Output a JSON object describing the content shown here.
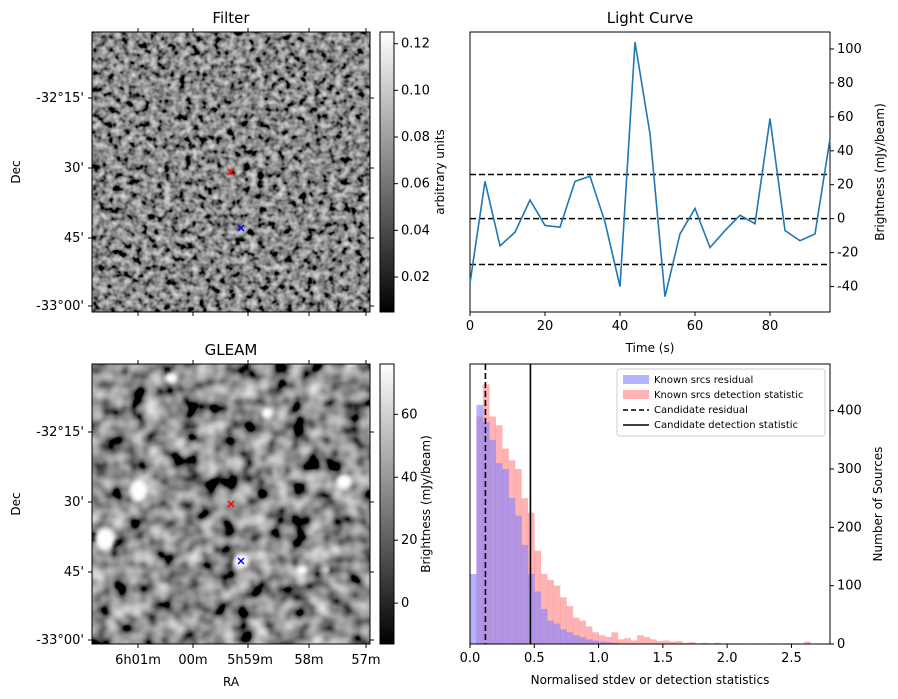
{
  "chart_data": [
    {
      "id": "filter",
      "type": "heatmap",
      "title": "Filter",
      "xlabel": "",
      "ylabel": "Dec",
      "dec_ticks": [
        "-32°15'",
        "30'",
        "45'",
        "-33°00'"
      ],
      "colorbar": {
        "label": "arbitrary units",
        "ticks": [
          "0.02",
          "0.04",
          "0.06",
          "0.08",
          "0.10",
          "0.12"
        ],
        "range": [
          0.005,
          0.125
        ]
      },
      "markers": [
        {
          "name": "red x",
          "color": "#ff0000",
          "ra": "5h59.5m",
          "dec": "-32°32'"
        },
        {
          "name": "blue x",
          "color": "#0000ff",
          "ra": "5h59.4m",
          "dec": "-32°42'"
        }
      ]
    },
    {
      "id": "lightcurve",
      "type": "line",
      "title": "Light Curve",
      "xlabel": "Time (s)",
      "ylabel": "Brightness (mJy/beam)",
      "xlim": [
        0,
        96
      ],
      "ylim": [
        -55,
        110
      ],
      "xticks": [
        "0",
        "20",
        "40",
        "60",
        "80"
      ],
      "yticks": [
        "-40",
        "-20",
        "0",
        "20",
        "40",
        "60",
        "80",
        "100"
      ],
      "series": [
        {
          "color": "#1f77b4",
          "x": [
            0,
            4,
            8,
            12,
            16,
            20,
            24,
            28,
            32,
            36,
            40,
            44,
            48,
            52,
            56,
            60,
            64,
            68,
            72,
            76,
            80,
            84,
            88,
            92,
            96
          ],
          "y": [
            -38,
            22,
            -16,
            -8,
            11,
            -4,
            -5,
            22,
            25,
            -2,
            -40,
            104,
            50,
            -46,
            -9,
            6,
            -17,
            -7,
            2,
            -3,
            59,
            -7,
            -13,
            -9,
            47
          ]
        }
      ],
      "hlines": [
        {
          "y": 26,
          "style": "dashed"
        },
        {
          "y": 0,
          "style": "dashed"
        },
        {
          "y": -27,
          "style": "dashed"
        }
      ]
    },
    {
      "id": "gleam",
      "type": "heatmap",
      "title": "GLEAM",
      "xlabel": "RA",
      "ylabel": "Dec",
      "ra_ticks": [
        "6h01m",
        "00m",
        "5h59m",
        "58m",
        "57m"
      ],
      "dec_ticks": [
        "-32°15'",
        "30'",
        "45'",
        "-33°00'"
      ],
      "colorbar": {
        "label": "Brightness (mJy/beam)",
        "ticks": [
          "0",
          "20",
          "40",
          "60"
        ],
        "range": [
          -13,
          76
        ]
      },
      "markers": [
        {
          "name": "red x",
          "color": "#ff0000",
          "ra": "5h59.5m",
          "dec": "-32°32'"
        },
        {
          "name": "blue x",
          "color": "#0000ff",
          "ra": "5h59.4m",
          "dec": "-32°42'"
        }
      ]
    },
    {
      "id": "histogram",
      "type": "bar",
      "title": "",
      "xlabel": "Normalised stdev or detection statistics",
      "ylabel": "Number of Sources",
      "xlim": [
        0,
        2.8
      ],
      "ylim": [
        0,
        480
      ],
      "xticks": [
        "0.0",
        "0.5",
        "1.0",
        "1.5",
        "2.0",
        "2.5"
      ],
      "yticks": [
        "0",
        "100",
        "200",
        "300",
        "400"
      ],
      "bin_width": 0.05,
      "series": [
        {
          "name": "Known srcs residual",
          "color": "#8080ff",
          "bin_starts": [
            0.0,
            0.05,
            0.1,
            0.15,
            0.2,
            0.25,
            0.3,
            0.35,
            0.4,
            0.45,
            0.5,
            0.55,
            0.6,
            0.65,
            0.7,
            0.75,
            0.8,
            0.85,
            0.9,
            0.95,
            1.0,
            1.05,
            1.1
          ],
          "values": [
            120,
            410,
            380,
            350,
            310,
            300,
            250,
            220,
            170,
            120,
            90,
            60,
            40,
            35,
            25,
            20,
            15,
            12,
            8,
            6,
            4,
            3,
            2
          ]
        },
        {
          "name": "Known srcs detection statistic",
          "color": "#ff8080",
          "bin_starts": [
            0.0,
            0.05,
            0.1,
            0.15,
            0.2,
            0.25,
            0.3,
            0.35,
            0.4,
            0.45,
            0.5,
            0.55,
            0.6,
            0.65,
            0.7,
            0.75,
            0.8,
            0.85,
            0.9,
            0.95,
            1.0,
            1.05,
            1.1,
            1.15,
            1.2,
            1.25,
            1.3,
            1.35,
            1.4,
            1.45,
            1.5,
            1.55,
            1.6,
            1.65,
            1.7,
            1.75,
            1.8,
            1.85,
            1.9,
            1.95,
            2.0,
            2.05,
            2.1,
            2.15,
            2.2,
            2.25,
            2.3,
            2.35,
            2.4,
            2.45,
            2.5,
            2.55,
            2.6,
            2.65,
            2.7
          ],
          "values": [
            0,
            390,
            445,
            390,
            375,
            335,
            315,
            300,
            250,
            225,
            160,
            120,
            110,
            100,
            80,
            65,
            45,
            40,
            30,
            20,
            15,
            12,
            20,
            8,
            10,
            6,
            15,
            12,
            8,
            5,
            6,
            4,
            5,
            2,
            3,
            1,
            2,
            0,
            2,
            1,
            1,
            0,
            1,
            0,
            1,
            0,
            1,
            0,
            0,
            0,
            1,
            0,
            4,
            0,
            1
          ]
        }
      ],
      "vlines": [
        {
          "name": "Candidate residual",
          "x": 0.12,
          "style": "dashed"
        },
        {
          "name": "Candidate detection statistic",
          "x": 0.47,
          "style": "solid"
        }
      ],
      "legend": {
        "placement": "top-right",
        "entries": [
          "Known srcs residual",
          "Known srcs detection statistic",
          "Candidate residual",
          "Candidate detection statistic"
        ]
      }
    }
  ]
}
